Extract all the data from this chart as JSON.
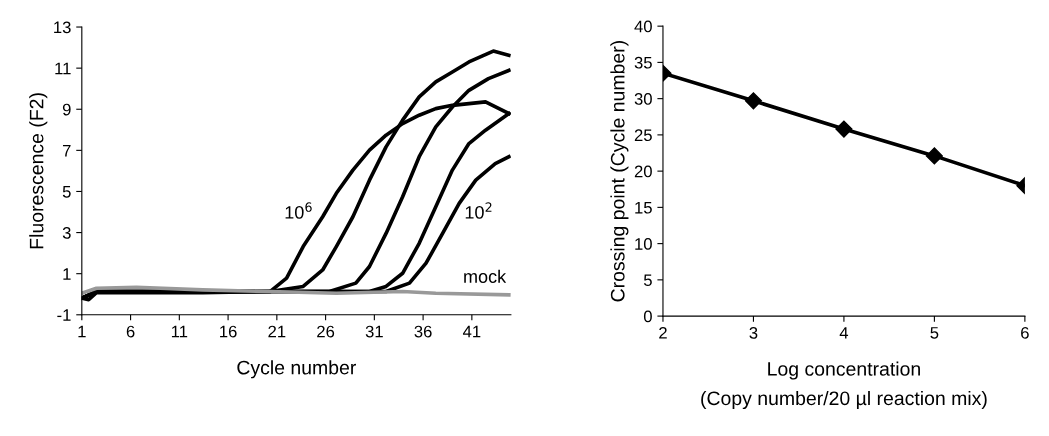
{
  "chart_data": [
    {
      "type": "line",
      "xlabel": "Cycle number",
      "ylabel": "Fluorescence (F2)",
      "xlim": [
        1,
        45
      ],
      "xticks": [
        1,
        6,
        11,
        16,
        21,
        26,
        31,
        36,
        41
      ],
      "ylim": [
        -1,
        13
      ],
      "yticks": [
        -1,
        1,
        3,
        5,
        7,
        9,
        11,
        13
      ],
      "marker": "none",
      "line_style": "solid",
      "series": [
        {
          "name": "10$^{6}$",
          "color": "#000000",
          "x": [
            1,
            1.7,
            2.5,
            13.4,
            20.3,
            22.0,
            23.7,
            25.7,
            27.1,
            28.8,
            30.5,
            32.2,
            33.9,
            35.6,
            37.3,
            39.0,
            42.4,
            44.8
          ],
          "values": [
            -0.19,
            -0.27,
            0.08,
            0.08,
            0.13,
            0.78,
            2.32,
            3.77,
            4.91,
            6.04,
            7.01,
            7.74,
            8.3,
            8.71,
            9.03,
            9.19,
            9.36,
            8.79
          ]
        },
        {
          "color": "#000000",
          "x": [
            1,
            2.5,
            20.3,
            23.7,
            25.7,
            27.1,
            28.8,
            30.5,
            32.2,
            33.9,
            35.6,
            37.3,
            39.0,
            40.7,
            43.2,
            44.8
          ],
          "values": [
            -0.19,
            0.13,
            0.13,
            0.38,
            1.18,
            2.32,
            3.77,
            5.55,
            7.17,
            8.47,
            9.6,
            10.33,
            10.81,
            11.3,
            11.83,
            11.62
          ]
        },
        {
          "color": "#000000",
          "x": [
            1,
            2.5,
            26.4,
            29.1,
            30.5,
            32.2,
            33.9,
            35.6,
            37.3,
            39.0,
            40.7,
            42.7,
            44.8
          ],
          "values": [
            -0.19,
            0.13,
            0.13,
            0.54,
            1.35,
            2.96,
            4.74,
            6.69,
            8.14,
            9.11,
            9.92,
            10.49,
            10.89
          ]
        },
        {
          "color": "#000000",
          "x": [
            1,
            2.5,
            30.5,
            32.2,
            33.9,
            35.6,
            37.3,
            39.0,
            40.7,
            42.4,
            44.8
          ],
          "values": [
            -0.19,
            0.13,
            0.13,
            0.38,
            1.02,
            2.48,
            4.26,
            6.04,
            7.33,
            7.98,
            8.79
          ]
        },
        {
          "name": "10$^{2}$",
          "color": "#000000",
          "x": [
            1,
            2.5,
            32.2,
            34.6,
            36.3,
            38.0,
            39.7,
            41.4,
            43.4,
            44.8
          ],
          "values": [
            -0.19,
            0.13,
            0.13,
            0.54,
            1.51,
            2.96,
            4.42,
            5.55,
            6.36,
            6.69
          ]
        },
        {
          "name": "mock",
          "color": "#999999",
          "x": [
            1,
            2.5,
            6.6,
            13.4,
            20.3,
            27.1,
            33.9,
            37.3,
            44.8
          ],
          "values": [
            0.05,
            0.29,
            0.34,
            0.21,
            0.13,
            0.05,
            0.13,
            0.05,
            -0.03
          ]
        }
      ]
    },
    {
      "type": "line",
      "xlabel": "Log concentration\n(Copy number/20 µl reaction mix)",
      "ylabel": "Crossing point (Cycle number)",
      "xlim": [
        2,
        6
      ],
      "xticks": [
        2,
        3,
        4,
        5,
        6
      ],
      "ylim": [
        0,
        40
      ],
      "yticks": [
        0,
        5,
        10,
        15,
        20,
        25,
        30,
        35,
        40
      ],
      "marker": "diamond",
      "line_style": "solid",
      "x": [
        2,
        3,
        4,
        5,
        6
      ],
      "series": [
        {
          "color": "#000000",
          "values": [
            33.5,
            29.7,
            25.8,
            22.1,
            18.0
          ]
        }
      ]
    }
  ]
}
